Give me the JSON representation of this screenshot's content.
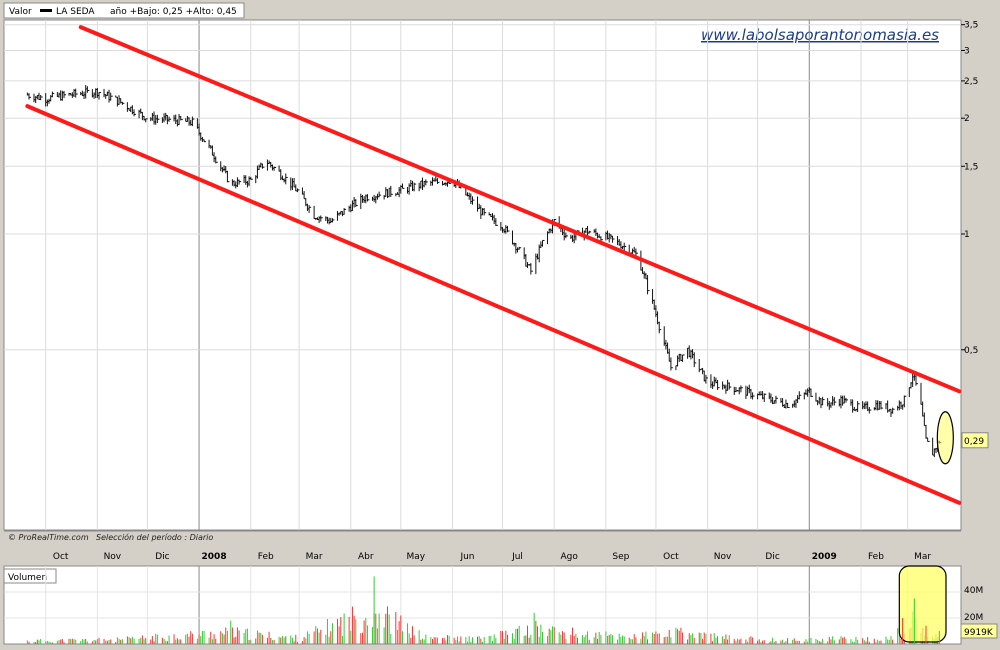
{
  "header": {
    "valor_label": "Valor",
    "series_name": "LA SEDA",
    "range_text": "año +Bajo: 0,25 +Alto: 0,45"
  },
  "watermark": "www.labolsaporantonomasia.es",
  "footer": {
    "copyright": "© ProRealTime.com",
    "period": "Selección del período : Diario"
  },
  "volume_panel": {
    "title": "Volumen",
    "ticks": [
      "40M",
      "20M"
    ],
    "current": "9919K"
  },
  "colors": {
    "channel": "#ff1a1a",
    "highlight": "#ffff66",
    "volume_up": "#33cc33",
    "volume_down": "#ff3333",
    "price_badge": "#ffff99"
  },
  "chart_data": {
    "type": "line",
    "title": "LA SEDA",
    "scale": "log",
    "ylim": [
      0.17,
      3.6
    ],
    "y_ticks": [
      {
        "value": 3.5,
        "label": "3,5"
      },
      {
        "value": 3,
        "label": "3"
      },
      {
        "value": 2.5,
        "label": "2,5"
      },
      {
        "value": 2,
        "label": "2"
      },
      {
        "value": 1.5,
        "label": "1,5"
      },
      {
        "value": 1,
        "label": "1"
      },
      {
        "value": 0.5,
        "label": "0,5"
      }
    ],
    "x_ticks": [
      "Oct",
      "Nov",
      "Dic",
      "2008",
      "Feb",
      "Mar",
      "Abr",
      "May",
      "Jun",
      "Jul",
      "Ago",
      "Sep",
      "Oct",
      "Nov",
      "Dic",
      "2009",
      "Feb",
      "Mar"
    ],
    "last_price": {
      "value": 0.29,
      "label": "0,29"
    },
    "grid": true,
    "series": [
      {
        "name": "LA SEDA",
        "x": [
          "2007-09-20",
          "2007-10-01",
          "2007-10-15",
          "2007-11-01",
          "2007-11-15",
          "2007-12-01",
          "2007-12-15",
          "2007-12-28",
          "2008-01-10",
          "2008-01-20",
          "2008-02-01",
          "2008-02-10",
          "2008-02-20",
          "2008-03-01",
          "2008-03-10",
          "2008-03-20",
          "2008-04-01",
          "2008-04-10",
          "2008-05-01",
          "2008-05-15",
          "2008-06-01",
          "2008-06-10",
          "2008-06-20",
          "2008-07-01",
          "2008-07-10",
          "2008-07-18",
          "2008-07-25",
          "2008-08-01",
          "2008-08-10",
          "2008-08-20",
          "2008-09-01",
          "2008-09-10",
          "2008-09-20",
          "2008-10-01",
          "2008-10-06",
          "2008-10-10",
          "2008-10-20",
          "2008-11-01",
          "2008-11-15",
          "2008-12-01",
          "2008-12-10",
          "2008-12-20",
          "2009-01-01",
          "2009-01-10",
          "2009-01-20",
          "2009-02-01",
          "2009-02-10",
          "2009-02-20",
          "2009-02-27",
          "2009-03-04",
          "2009-03-08",
          "2009-03-12",
          "2009-03-16",
          "2009-03-20"
        ],
        "values": [
          2.3,
          2.25,
          2.3,
          2.35,
          2.2,
          2.0,
          1.98,
          1.95,
          1.6,
          1.35,
          1.38,
          1.55,
          1.42,
          1.28,
          1.12,
          1.08,
          1.18,
          1.25,
          1.3,
          1.35,
          1.38,
          1.25,
          1.12,
          1.05,
          0.92,
          0.8,
          0.95,
          1.08,
          0.97,
          1.02,
          0.98,
          0.94,
          0.88,
          0.62,
          0.52,
          0.45,
          0.5,
          0.41,
          0.4,
          0.38,
          0.37,
          0.36,
          0.39,
          0.36,
          0.37,
          0.35,
          0.36,
          0.35,
          0.37,
          0.43,
          0.38,
          0.29,
          0.27,
          0.29
        ]
      }
    ],
    "channel_lines": [
      {
        "name": "upper",
        "x": [
          "2007-10-22",
          "2009-04-01"
        ],
        "values": [
          3.45,
          0.39
        ]
      },
      {
        "name": "lower",
        "x": [
          "2007-09-20",
          "2009-04-01"
        ],
        "values": [
          2.15,
          0.2
        ]
      }
    ],
    "volume": {
      "unit": "shares",
      "ylim": [
        0,
        60000000
      ],
      "x": [
        "2007-09-20",
        "2007-11-15",
        "2008-01-20",
        "2008-03-01",
        "2008-04-15",
        "2008-05-15",
        "2008-06-20",
        "2008-07-20",
        "2008-08-20",
        "2008-09-20",
        "2008-10-15",
        "2008-11-15",
        "2008-12-15",
        "2009-01-15",
        "2009-02-15",
        "2009-02-26",
        "2009-03-05",
        "2009-03-12",
        "2009-03-20"
      ],
      "values": [
        5000000,
        7000000,
        18000000,
        9000000,
        52000000,
        10000000,
        8000000,
        24000000,
        14000000,
        12000000,
        17000000,
        9000000,
        6000000,
        8000000,
        7000000,
        20000000,
        35000000,
        14000000,
        9919000
      ]
    }
  }
}
